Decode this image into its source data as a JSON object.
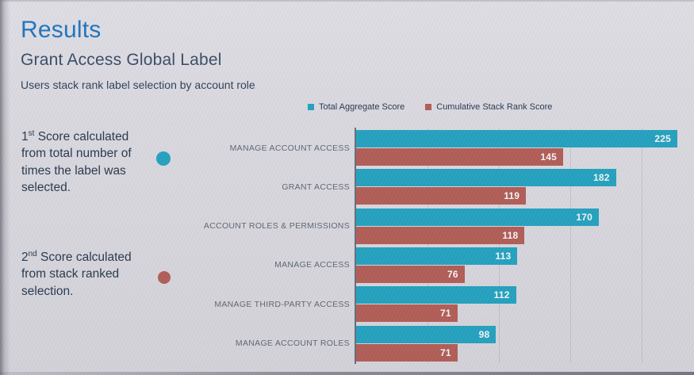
{
  "page": {
    "title": "Results",
    "subtitle": "Grant Access Global Label",
    "description": "Users stack rank label selection by account role"
  },
  "legend": [
    {
      "label": "Total Aggregate Score",
      "color": "#21a0bd"
    },
    {
      "label": "Cumulative Stack Rank Score",
      "color": "#b05b54"
    }
  ],
  "notes": [
    {
      "number": "1",
      "ordinal": "st",
      "text": "Score calculated from total number of times the label was selected.",
      "marker_color": "#21a0bd"
    },
    {
      "number": "2",
      "ordinal": "nd",
      "text": "Score calculated from stack ranked selection.",
      "marker_color": "#b05b54"
    }
  ],
  "chart_data": {
    "type": "bar",
    "orientation": "horizontal",
    "title": "Grant Access Global Label",
    "subtitle": "Users stack rank label selection by account role",
    "categories": [
      "MANAGE ACCOUNT ACCESS",
      "GRANT ACCESS",
      "ACCOUNT ROLES & PERMISSIONS",
      "MANAGE ACCESS",
      "MANAGE THIRD-PARTY ACCESS",
      "MANAGE ACCOUNT ROLES"
    ],
    "series": [
      {
        "name": "Total Aggregate Score",
        "color": "#21a0bd",
        "values": [
          225,
          182,
          170,
          113,
          112,
          98
        ]
      },
      {
        "name": "Cumulative Stack Rank Score",
        "color": "#b05b54",
        "values": [
          145,
          119,
          118,
          76,
          71,
          71
        ]
      }
    ],
    "xlim": [
      0,
      250
    ],
    "gridline_interval": 50,
    "grid": true,
    "value_labels": true,
    "legend_position": "top"
  },
  "colors": {
    "accent_title": "#1d72bc",
    "heading": "#364a64",
    "body_text": "#26364a",
    "category_label": "#5d6572",
    "legend_text": "#24364e",
    "teal": "#21a0bd",
    "red": "#b05b54",
    "background": "#d8d7de",
    "axis": "#44505c",
    "value_label": "#f4f4f6"
  }
}
